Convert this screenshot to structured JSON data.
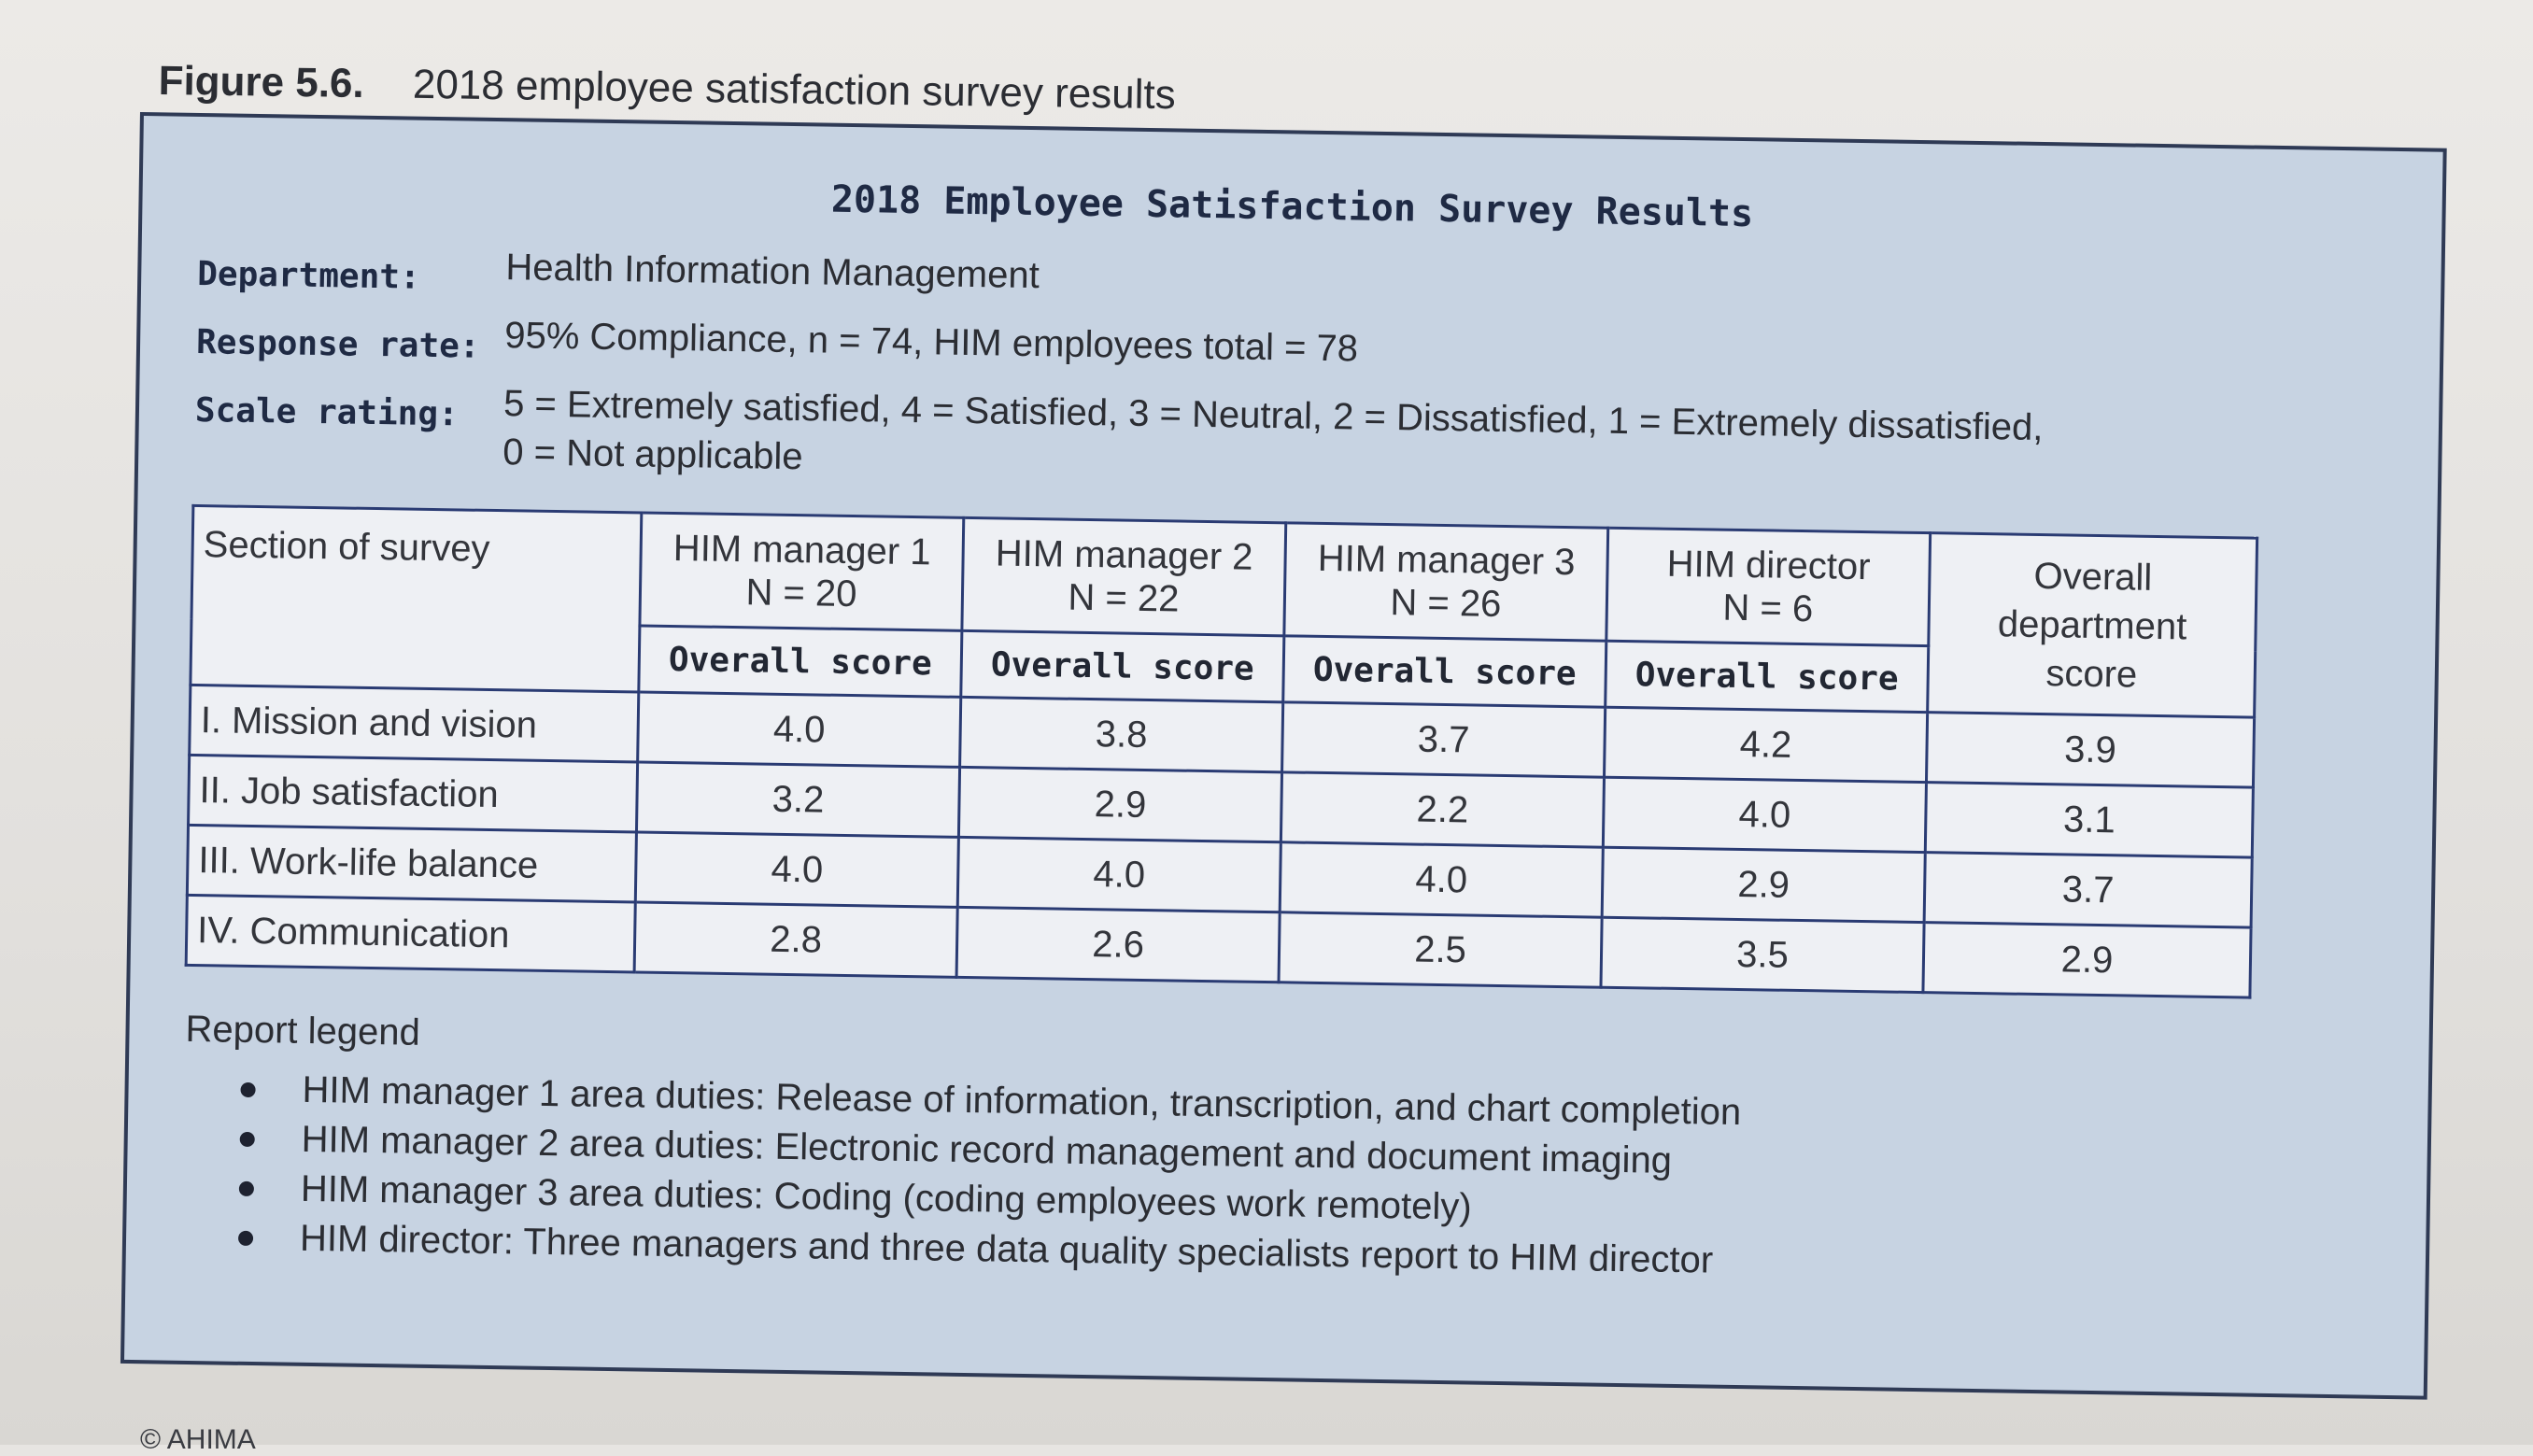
{
  "figure": {
    "number": "Figure 5.6.",
    "caption": "2018 employee satisfaction survey results"
  },
  "report": {
    "title": "2018 Employee Satisfaction Survey Results",
    "meta": [
      {
        "label": "Department:",
        "value": "Health Information Management"
      },
      {
        "label": "Response rate:",
        "value": "95% Compliance, n = 74, HIM employees total = 78"
      },
      {
        "label": "Scale rating:",
        "value": "5 = Extremely satisfied, 4 = Satisfied, 3 = Neutral, 2 = Dissatisfied, 1 = Extremely dissatisfied,",
        "value2": "0 = Not applicable"
      }
    ]
  },
  "table": {
    "section_header": "Section of survey",
    "columns": [
      {
        "name": "HIM manager 1",
        "n": "N = 20",
        "sub": "Overall score"
      },
      {
        "name": "HIM manager 2",
        "n": "N = 22",
        "sub": "Overall score"
      },
      {
        "name": "HIM manager 3",
        "n": "N = 26",
        "sub": "Overall score"
      },
      {
        "name": "HIM director",
        "n": "N = 6",
        "sub": "Overall score"
      }
    ],
    "overall_header": {
      "line1": "Overall",
      "line2": "department",
      "line3": "score"
    },
    "rows": [
      {
        "section": "I. Mission and vision",
        "scores": [
          "4.0",
          "3.8",
          "3.7",
          "4.2",
          "3.9"
        ]
      },
      {
        "section": "II. Job satisfaction",
        "scores": [
          "3.2",
          "2.9",
          "2.2",
          "4.0",
          "3.1"
        ]
      },
      {
        "section": "III. Work-life balance",
        "scores": [
          "4.0",
          "4.0",
          "4.0",
          "2.9",
          "3.7"
        ]
      },
      {
        "section": "IV. Communication",
        "scores": [
          "2.8",
          "2.6",
          "2.5",
          "3.5",
          "2.9"
        ]
      }
    ]
  },
  "legend": {
    "title": "Report legend",
    "items": [
      "HIM manager 1 area duties: Release of information, transcription, and chart completion",
      "HIM manager 2 area duties: Electronic record management and document imaging",
      "HIM manager 3 area duties: Coding (coding employees work remotely)",
      "HIM director: Three managers and three data quality specialists report to HIM director"
    ]
  },
  "footer": {
    "text": "© AHIMA"
  }
}
